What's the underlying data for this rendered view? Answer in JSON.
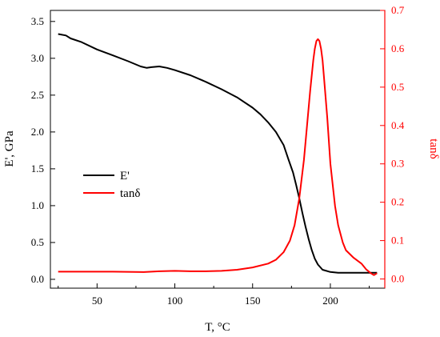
{
  "chart_data": {
    "type": "line",
    "title": "",
    "xlabel": "T, °C",
    "ylabel_left": "E', GPa",
    "ylabel_right": "tanδ",
    "xlim": [
      20,
      235
    ],
    "ylim_left": [
      -0.12,
      3.65
    ],
    "ylim_right": [
      -0.024,
      0.7
    ],
    "xticks": [
      50,
      100,
      150,
      200
    ],
    "yticks_left": [
      0.0,
      0.5,
      1.0,
      1.5,
      2.0,
      2.5,
      3.0,
      3.5
    ],
    "yticks_right": [
      0.0,
      0.1,
      0.2,
      0.3,
      0.4,
      0.5,
      0.6,
      0.7
    ],
    "grid": false,
    "legend_position": "center-left",
    "series": [
      {
        "name": "E'",
        "axis": "left",
        "color": "#000000",
        "x": [
          25,
          30,
          33,
          40,
          50,
          60,
          70,
          78,
          82,
          85,
          90,
          95,
          100,
          110,
          120,
          130,
          140,
          150,
          155,
          160,
          165,
          170,
          173,
          176,
          178,
          180,
          182,
          184,
          186,
          188,
          190,
          192,
          195,
          200,
          205,
          210,
          220,
          230
        ],
        "values": [
          3.33,
          3.31,
          3.27,
          3.22,
          3.12,
          3.04,
          2.96,
          2.89,
          2.87,
          2.88,
          2.89,
          2.87,
          2.84,
          2.77,
          2.68,
          2.58,
          2.47,
          2.33,
          2.24,
          2.13,
          2.0,
          1.82,
          1.63,
          1.45,
          1.28,
          1.1,
          0.9,
          0.72,
          0.55,
          0.4,
          0.28,
          0.2,
          0.13,
          0.1,
          0.09,
          0.09,
          0.09,
          0.09
        ]
      },
      {
        "name": "tanδ",
        "axis": "right",
        "color": "#ff0000",
        "x": [
          25,
          40,
          60,
          80,
          90,
          100,
          110,
          120,
          130,
          140,
          150,
          160,
          165,
          170,
          174,
          177,
          180,
          183,
          185,
          187,
          189,
          190,
          191,
          192,
          193,
          194,
          195,
          196,
          198,
          200,
          203,
          205,
          208,
          210,
          215,
          220,
          223,
          226,
          228,
          230
        ],
        "values": [
          0.019,
          0.019,
          0.019,
          0.018,
          0.02,
          0.021,
          0.02,
          0.02,
          0.021,
          0.024,
          0.03,
          0.04,
          0.05,
          0.07,
          0.1,
          0.14,
          0.21,
          0.31,
          0.4,
          0.49,
          0.57,
          0.6,
          0.62,
          0.625,
          0.62,
          0.6,
          0.57,
          0.52,
          0.42,
          0.3,
          0.19,
          0.14,
          0.095,
          0.075,
          0.055,
          0.04,
          0.025,
          0.015,
          0.01,
          0.015
        ]
      }
    ]
  }
}
